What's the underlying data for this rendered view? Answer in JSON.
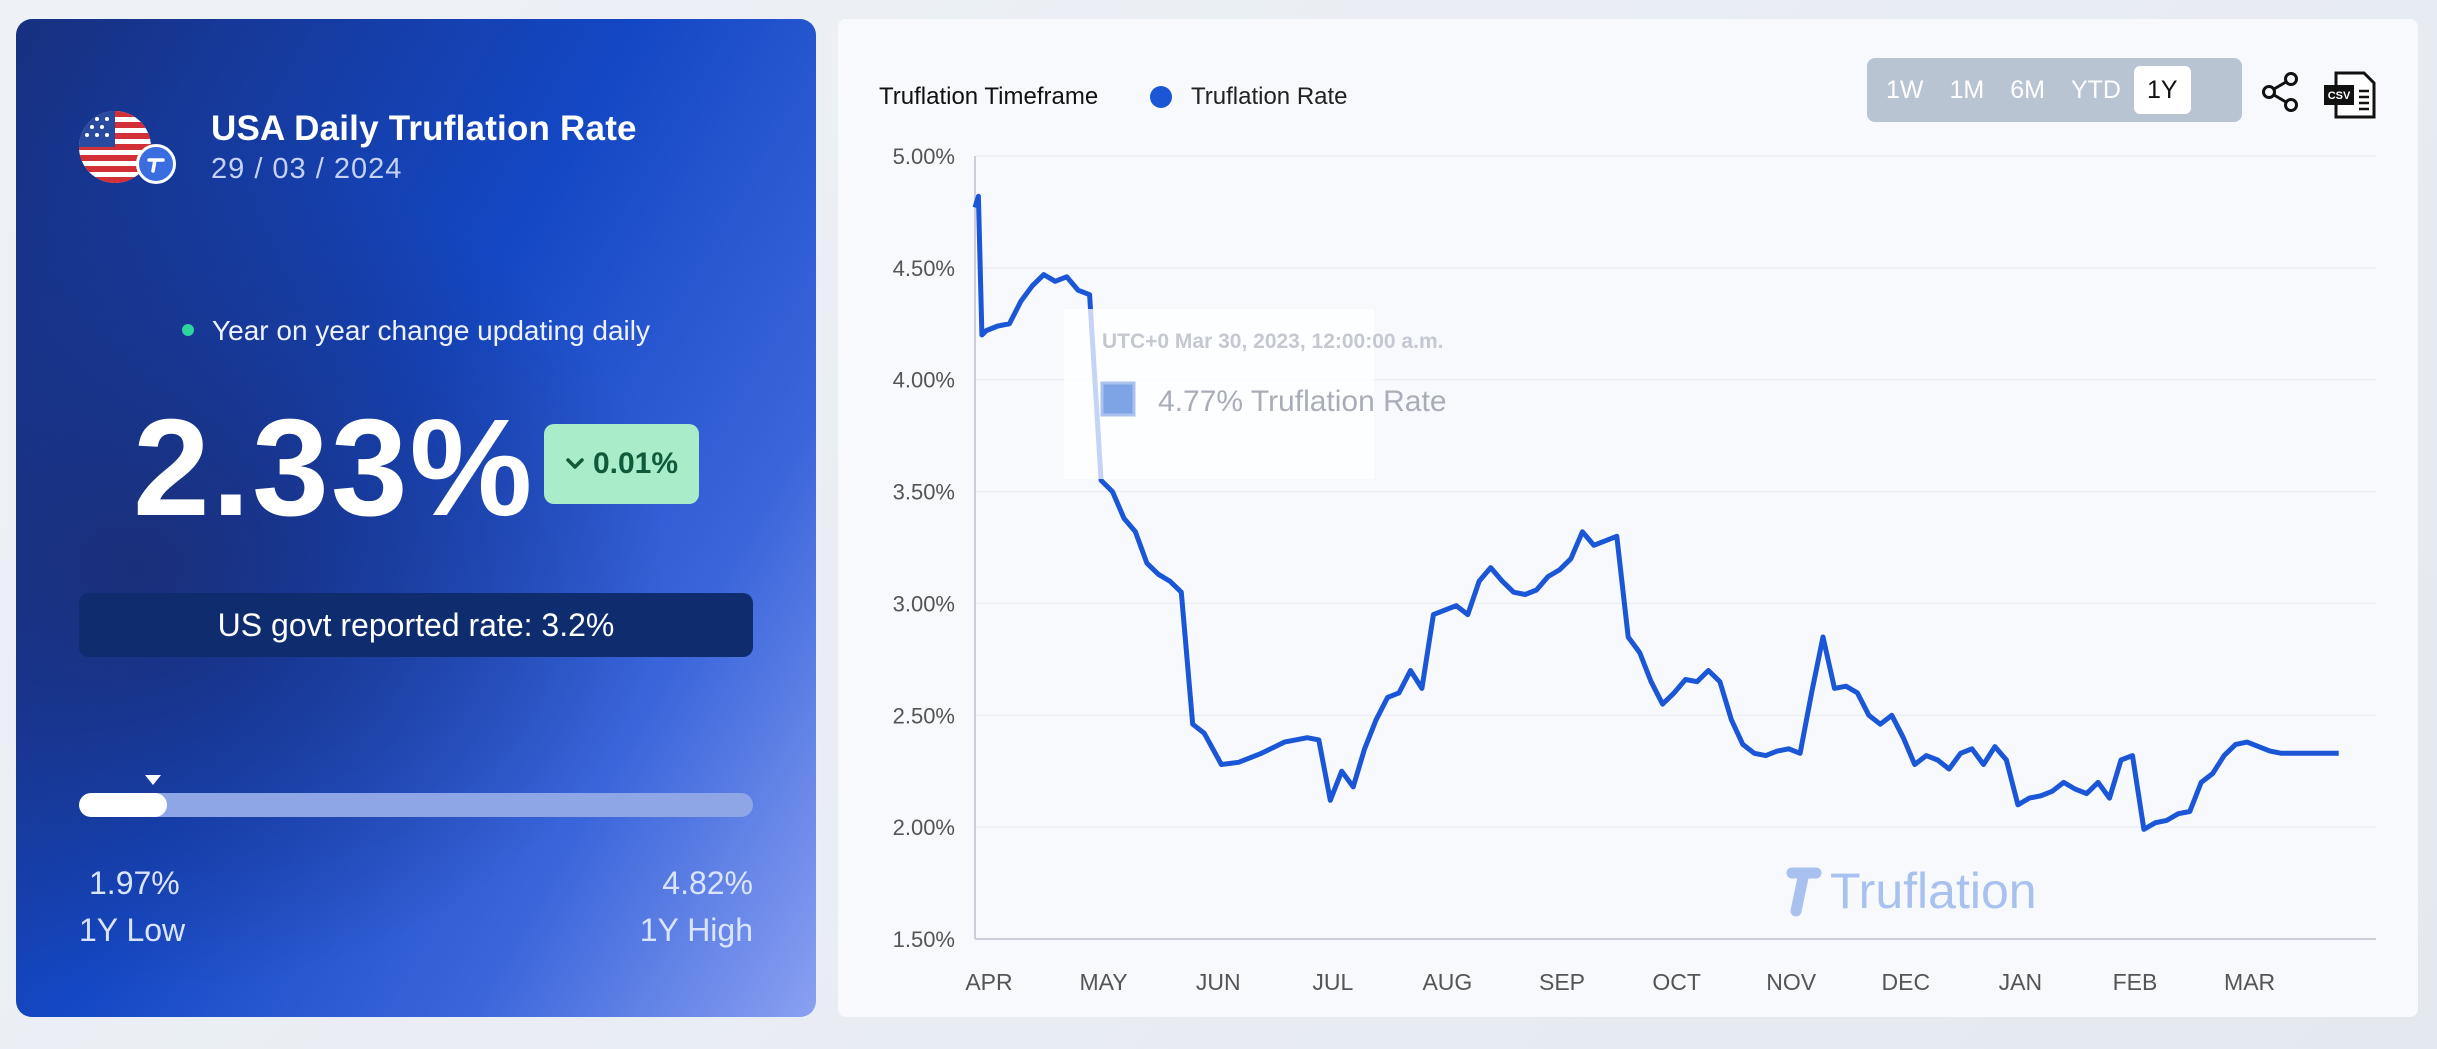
{
  "summary": {
    "title": "USA Daily Truflation Rate",
    "date": "29 / 03 / 2024",
    "yoy_text": "Year on year change updating daily",
    "rate": "2.33%",
    "change": "0.01%",
    "gov_rate": "US govt reported rate: 3.2%",
    "range": {
      "low": "1.97%",
      "high": "4.82%",
      "low_label": "1Y Low",
      "high_label": "1Y High",
      "current_position": 0.13
    }
  },
  "colors": {
    "accent": "#1a56d6",
    "badge_bg": "#a8ecc9",
    "badge_text": "#0f5a3a"
  },
  "toolbar": {
    "legend_title": "Truflation Timeframe",
    "series_label": "Truflation Rate",
    "timeframes": [
      "1W",
      "1M",
      "6M",
      "YTD",
      "1Y"
    ],
    "active_timeframe": "1Y",
    "share_icon": "share-icon",
    "csv_icon": "csv-download-icon",
    "csv_text": "CSV"
  },
  "tooltip": {
    "date": "UTC+0 Mar 30, 2023, 12:00:00 a.m.",
    "value": "4.77% Truflation Rate"
  },
  "watermark": "Truflation",
  "chart_data": {
    "type": "line",
    "ylim": [
      1.5,
      5.0
    ],
    "yticks": [
      "1.50%",
      "2.00%",
      "2.50%",
      "3.00%",
      "3.50%",
      "4.00%",
      "4.50%",
      "5.00%"
    ],
    "xticks": [
      "APR",
      "MAY",
      "JUN",
      "JUL",
      "AUG",
      "SEP",
      "OCT",
      "NOV",
      "DEC",
      "JAN",
      "FEB",
      "MAR"
    ],
    "grid": true,
    "series": [
      {
        "name": "Truflation Rate",
        "color": "#1a56d6",
        "x": [
          0,
          0.03,
          0.06,
          0.1,
          0.2,
          0.3,
          0.4,
          0.5,
          0.6,
          0.7,
          0.8,
          0.9,
          1.0,
          1.1,
          1.2,
          1.3,
          1.4,
          1.5,
          1.6,
          1.7,
          1.8,
          1.9,
          2.0,
          2.15,
          2.3,
          2.5,
          2.7,
          2.9,
          3.0,
          3.1,
          3.2,
          3.3,
          3.4,
          3.5,
          3.6,
          3.7,
          3.8,
          3.9,
          4.0,
          4.1,
          4.2,
          4.3,
          4.4,
          4.5,
          4.6,
          4.7,
          4.8,
          4.9,
          5.0,
          5.1,
          5.2,
          5.3,
          5.4,
          5.5,
          5.6,
          5.7,
          5.8,
          5.9,
          6.0,
          6.1,
          6.2,
          6.3,
          6.4,
          6.5,
          6.6,
          6.7,
          6.8,
          6.9,
          7.0,
          7.1,
          7.2,
          7.3,
          7.4,
          7.5,
          7.6,
          7.7,
          7.8,
          7.9,
          8.0,
          8.1,
          8.2,
          8.3,
          8.4,
          8.5,
          8.6,
          8.7,
          8.8,
          8.9,
          9.0,
          9.1,
          9.2,
          9.3,
          9.4,
          9.5,
          9.6,
          9.7,
          9.8,
          9.9,
          10.0,
          10.1,
          10.2,
          10.3,
          10.4,
          10.5,
          10.6,
          10.7,
          10.8,
          10.9,
          11.0,
          11.1,
          11.2,
          11.3,
          11.4,
          11.5,
          11.6,
          11.7,
          11.8,
          11.9
        ],
        "values": [
          4.77,
          4.82,
          4.2,
          4.22,
          4.24,
          4.25,
          4.35,
          4.42,
          4.47,
          4.44,
          4.46,
          4.4,
          4.38,
          3.55,
          3.5,
          3.38,
          3.32,
          3.18,
          3.13,
          3.1,
          3.05,
          2.46,
          2.42,
          2.28,
          2.29,
          2.33,
          2.38,
          2.4,
          2.39,
          2.12,
          2.25,
          2.18,
          2.35,
          2.48,
          2.58,
          2.6,
          2.7,
          2.62,
          2.95,
          2.97,
          2.99,
          2.95,
          3.1,
          3.16,
          3.1,
          3.05,
          3.04,
          3.06,
          3.12,
          3.15,
          3.2,
          3.32,
          3.26,
          3.28,
          3.3,
          2.85,
          2.78,
          2.65,
          2.55,
          2.6,
          2.66,
          2.65,
          2.7,
          2.65,
          2.48,
          2.37,
          2.33,
          2.32,
          2.34,
          2.35,
          2.33,
          2.6,
          2.85,
          2.62,
          2.63,
          2.6,
          2.5,
          2.46,
          2.5,
          2.4,
          2.28,
          2.32,
          2.3,
          2.26,
          2.33,
          2.35,
          2.28,
          2.36,
          2.3,
          2.1,
          2.13,
          2.14,
          2.16,
          2.2,
          2.17,
          2.15,
          2.2,
          2.13,
          2.3,
          2.32,
          1.99,
          2.02,
          2.03,
          2.06,
          2.07,
          2.2,
          2.24,
          2.32,
          2.37,
          2.38,
          2.36,
          2.34,
          2.33,
          2.33,
          2.33,
          2.33,
          2.33,
          2.33
        ]
      }
    ]
  }
}
